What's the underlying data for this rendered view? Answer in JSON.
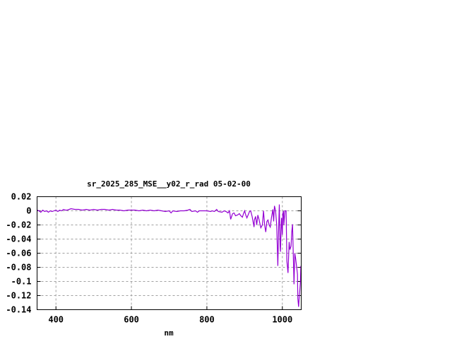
{
  "chart_data": {
    "type": "line",
    "title": "sr_2025_285_MSE__y02_r_rad 05-02-00",
    "xlabel": "nm",
    "ylabel": "",
    "xlim": [
      350,
      1050
    ],
    "ylim": [
      -0.14,
      0.02
    ],
    "xticks": [
      400,
      600,
      800,
      1000
    ],
    "xtick_labels": [
      "400",
      "600",
      "800",
      "1000"
    ],
    "yticks": [
      0.02,
      0,
      -0.02,
      -0.04,
      -0.06,
      -0.08,
      -0.1,
      -0.12,
      -0.14
    ],
    "ytick_labels": [
      "0.02",
      "0",
      "-0.02",
      "-0.04",
      "-0.06",
      "-0.08",
      "-0.1",
      "-0.12",
      "-0.14"
    ],
    "grid": true,
    "legend": "none",
    "line_color": "#9400d3",
    "series": [
      {
        "x": [
          350,
          355,
          360,
          365,
          370,
          375,
          380,
          385,
          390,
          395,
          400,
          405,
          410,
          415,
          420,
          425,
          430,
          440,
          450,
          460,
          470,
          480,
          490,
          500,
          510,
          520,
          530,
          540,
          550,
          560,
          570,
          580,
          590,
          600,
          610,
          620,
          630,
          640,
          650,
          660,
          670,
          680,
          690,
          700,
          705,
          710,
          720,
          730,
          740,
          750,
          755,
          760,
          770,
          775,
          780,
          790,
          800,
          810,
          814,
          820,
          826,
          830,
          840,
          846,
          851,
          856,
          860,
          863,
          868,
          872,
          876,
          881,
          886,
          890,
          894,
          897,
          900,
          903,
          906,
          910,
          913,
          916,
          920,
          925,
          926,
          929,
          932,
          935,
          938,
          943,
          947,
          950,
          953,
          956,
          959,
          962,
          965,
          968,
          971,
          975,
          977,
          979,
          982,
          985,
          988,
          990,
          992,
          994,
          995,
          997,
          998,
          1000,
          1001,
          1003,
          1004,
          1007,
          1010,
          1012,
          1015,
          1018,
          1020,
          1023,
          1025,
          1027,
          1029,
          1031,
          1033,
          1035,
          1038,
          1040,
          1041,
          1043,
          1045,
          1046,
          1048,
          1049,
          1050
        ],
        "y": [
          0.001,
          0.0,
          -0.002,
          0.001,
          -0.001,
          0.0,
          -0.002,
          0.0,
          -0.001,
          0.0,
          0.001,
          -0.001,
          0.001,
          0.0,
          0.002,
          0.001,
          0.001,
          0.003,
          0.002,
          0.002,
          0.001,
          0.002,
          0.001,
          0.002,
          0.001,
          0.002,
          0.002,
          0.001,
          0.002,
          0.001,
          0.001,
          0.0,
          0.001,
          0.001,
          0.001,
          0.0,
          0.001,
          0.0,
          0.001,
          0.0,
          0.001,
          0.0,
          -0.001,
          0.0,
          -0.003,
          0.0,
          -0.001,
          0.0,
          0.0,
          0.001,
          0.002,
          -0.001,
          0.0,
          -0.002,
          0.0,
          0.0,
          0.0,
          -0.001,
          0.0,
          -0.001,
          0.002,
          -0.001,
          -0.002,
          0.0,
          -0.001,
          -0.003,
          0.0,
          -0.012,
          -0.004,
          -0.003,
          -0.007,
          -0.006,
          -0.004,
          -0.007,
          -0.009,
          -0.004,
          0.0,
          -0.006,
          -0.01,
          -0.005,
          -0.001,
          0.0,
          -0.008,
          -0.023,
          -0.013,
          -0.008,
          -0.02,
          -0.006,
          -0.012,
          -0.024,
          -0.02,
          0.0,
          -0.02,
          -0.03,
          -0.015,
          -0.013,
          -0.02,
          -0.023,
          -0.01,
          0.002,
          -0.015,
          0.007,
          0.0,
          -0.02,
          -0.078,
          -0.03,
          0.009,
          -0.05,
          -0.058,
          -0.02,
          -0.01,
          -0.034,
          -0.005,
          0.0,
          -0.02,
          0.0,
          0.0,
          -0.071,
          -0.088,
          -0.044,
          -0.055,
          -0.05,
          -0.03,
          -0.019,
          -0.063,
          -0.104,
          -0.06,
          -0.067,
          -0.08,
          -0.09,
          -0.124,
          -0.136,
          -0.12,
          -0.114,
          -0.1,
          -0.078,
          -0.09
        ]
      }
    ]
  }
}
